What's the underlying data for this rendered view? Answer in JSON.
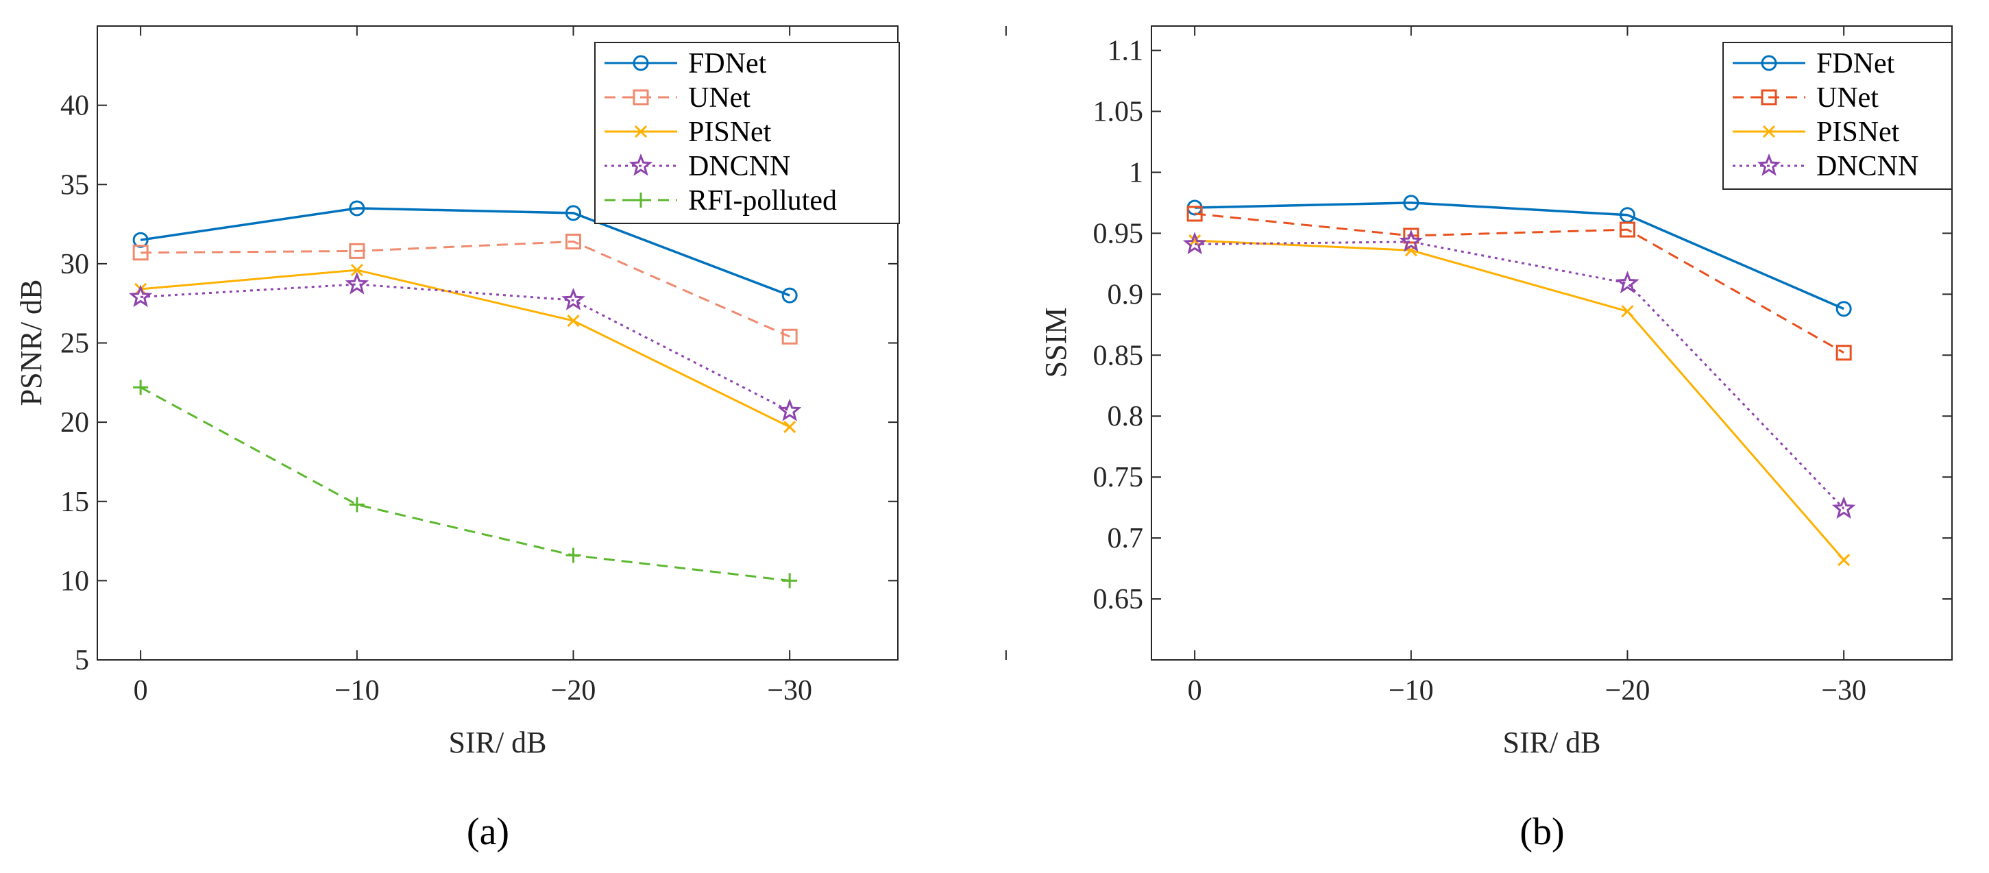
{
  "chart_data": [
    {
      "type": "line",
      "panel_label": "(a)",
      "xlabel": "SIR/ dB",
      "ylabel": "PSNR/ dB",
      "xlim": [
        -0.2,
        3.5
      ],
      "ylim": [
        5,
        45
      ],
      "categories": [
        "0",
        "−10",
        "−20",
        "−30"
      ],
      "yticks": [
        5,
        10,
        15,
        20,
        25,
        30,
        35,
        40
      ],
      "legend_position": "top-right",
      "series": [
        {
          "name": "FDNet",
          "color": "#0072BD",
          "marker": "circle",
          "dash": "solid",
          "values": [
            31.5,
            33.5,
            33.2,
            28.0
          ]
        },
        {
          "name": "UNet",
          "color": "#F08A6F",
          "marker": "square",
          "dash": "dashed",
          "values": [
            30.7,
            30.8,
            31.4,
            25.4
          ]
        },
        {
          "name": "PISNet",
          "color": "#FFB000",
          "marker": "x",
          "dash": "solid",
          "values": [
            28.4,
            29.6,
            26.4,
            19.7
          ]
        },
        {
          "name": "DNCNN",
          "color": "#8E44AD",
          "marker": "star",
          "dash": "dotted",
          "values": [
            27.9,
            28.7,
            27.7,
            20.7
          ]
        },
        {
          "name": "RFI-polluted",
          "color": "#5DB82F",
          "marker": "plus",
          "dash": "dashed",
          "values": [
            22.2,
            14.8,
            11.6,
            10.0
          ]
        }
      ]
    },
    {
      "type": "line",
      "panel_label": "(b)",
      "xlabel": "SIR/ dB",
      "ylabel": "SSIM",
      "xlim": [
        -0.2,
        3.5
      ],
      "ylim": [
        0.6,
        1.12
      ],
      "categories": [
        "0",
        "−10",
        "−20",
        "−30"
      ],
      "yticks": [
        "0.65",
        "0.7",
        "0.75",
        "0.8",
        "0.85",
        "0.9",
        "0.95",
        "1",
        "1.05",
        "1.1"
      ],
      "legend_position": "top-right",
      "series": [
        {
          "name": "FDNet",
          "color": "#0072BD",
          "marker": "circle",
          "dash": "solid",
          "values": [
            0.971,
            0.975,
            0.965,
            0.888
          ]
        },
        {
          "name": "UNet",
          "color": "#E8501E",
          "marker": "square",
          "dash": "dashed",
          "values": [
            0.966,
            0.948,
            0.953,
            0.852
          ]
        },
        {
          "name": "PISNet",
          "color": "#FFB000",
          "marker": "x",
          "dash": "solid",
          "values": [
            0.944,
            0.936,
            0.886,
            0.682
          ]
        },
        {
          "name": "DNCNN",
          "color": "#8E44AD",
          "marker": "star",
          "dash": "dotted",
          "values": [
            0.941,
            0.943,
            0.909,
            0.724
          ]
        }
      ]
    }
  ]
}
